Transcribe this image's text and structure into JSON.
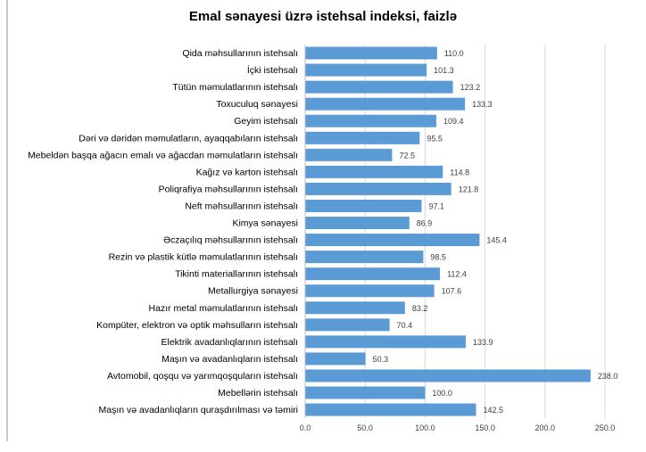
{
  "chart_data": {
    "type": "bar",
    "orientation": "horizontal",
    "title": "Emal sənayesi üzrə istehsal indeksi, faizlə",
    "xlabel": "",
    "ylabel": "",
    "xlim": [
      0,
      250
    ],
    "grid": true,
    "color": "#5b9bd5",
    "ticks": [
      "0.0",
      "50.0",
      "100.0",
      "150.0",
      "200.0",
      "250.0"
    ],
    "tick_values": [
      0,
      50,
      100,
      150,
      200,
      250
    ],
    "categories": [
      "Qida məhsullarının istehsalı",
      "İçki istehsalı",
      "Tütün məmulatlarının istehsalı",
      "Toxuculuq sənayesi",
      "Geyim istehsalı",
      "Dəri və dəridən məmulatların, ayaqqabıların istehsalı",
      "Mebeldən başqa ağacın emalı və ağacdan məmulatların istehsalı",
      "Kağız və karton istehsalı",
      "Poliqrafiya məhsullarının istehsalı",
      "Neft məhsullarının istehsalı",
      "Kimya sənayesi",
      "Əczaçılıq məhsullarının istehsalı",
      "Rezin və plastik kütlə məmulatlarının istehsalı",
      "Tikinti materiallarının istehsalı",
      "Metallurgiya sənayesi",
      "Hazır metal məmulatlarının istehsalı",
      "Kompüter, elektron və optik məhsulların istehsalı",
      "Elektrik avadanlıqlarının istehsalı",
      "Maşın və avadanlıqların istehsalı",
      "Avtomobil, qoşqu və yarımqoşquların istehsalı",
      "Mebellərin istehsalı",
      "Maşın və avadanlıqların quraşdırılması və təmiri"
    ],
    "values": [
      110.0,
      101.3,
      123.2,
      133.3,
      109.4,
      95.5,
      72.5,
      114.8,
      121.8,
      97.1,
      86.9,
      145.4,
      98.5,
      112.4,
      107.6,
      83.2,
      70.4,
      133.9,
      50.3,
      238.0,
      100.0,
      142.5
    ],
    "labels": [
      "110.0",
      "101.3",
      "123.2",
      "133.3",
      "109.4",
      "95.5",
      "72.5",
      "114.8",
      "121.8",
      "97.1",
      "86.9",
      "145.4",
      "98.5",
      "112.4",
      "107.6",
      "83.2",
      "70.4",
      "133.9",
      "50.3",
      "238.0",
      "100.0",
      "142.5"
    ]
  }
}
